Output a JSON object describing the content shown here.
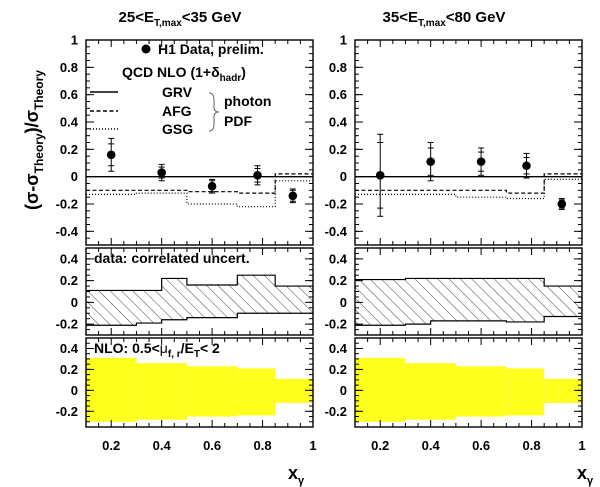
{
  "chart_data": {
    "type": "scatter",
    "columns": [
      {
        "title_main": "25<E",
        "title_sub": "T,max",
        "title_end": "<35 GeV"
      },
      {
        "title_main": "35<E",
        "title_sub": "T,max",
        "title_end": "<80 GeV"
      }
    ],
    "ylabel": {
      "a": "(σ-σ",
      "b": "Theory",
      "c": ")/σ",
      "d": "Theory"
    },
    "xlabel": {
      "main": "x",
      "sub": "γ"
    },
    "x_ticks": [
      "0.2",
      "0.4",
      "0.6",
      "0.8",
      "1"
    ],
    "xlim": [
      0.1,
      1.0
    ],
    "bin_edges": [
      [
        0.1,
        0.3,
        0.5,
        0.7,
        0.85,
        1.0
      ],
      [
        0.1,
        0.3,
        0.5,
        0.7,
        0.85,
        1.0
      ]
    ],
    "top": {
      "ylim": [
        -0.5,
        1.0
      ],
      "y_ticks": [
        "1",
        "0.8",
        "0.6",
        "0.4",
        "0.2",
        "0",
        "-0.2",
        "-0.4"
      ],
      "y_tick_values": [
        1,
        0.8,
        0.6,
        0.4,
        0.2,
        0,
        -0.2,
        -0.4
      ],
      "legend": {
        "data_label": "H1 Data, prelim.",
        "theory_label": "QCD NLO (1+δ",
        "theory_sub": "hadr",
        "theory_end": ")",
        "grv": "GRV",
        "afg": "AFG",
        "gsg": "GSG",
        "photon": "photon",
        "pdf": "PDF"
      },
      "data": [
        {
          "x": [
            0.2,
            0.4,
            0.6,
            0.78,
            0.92
          ],
          "y": [
            0.16,
            0.03,
            -0.07,
            0.01,
            -0.14
          ],
          "err_inner": [
            0.08,
            0.04,
            0.04,
            0.05,
            0.04
          ],
          "err_outer": [
            0.12,
            0.06,
            0.05,
            0.07,
            0.05
          ]
        },
        {
          "x": [
            0.2,
            0.4,
            0.6,
            0.78,
            0.92
          ],
          "y": [
            0.01,
            0.11,
            0.11,
            0.08,
            -0.2
          ],
          "err_inner": [
            0.24,
            0.1,
            0.07,
            0.06,
            0.03
          ],
          "err_outer": [
            0.3,
            0.14,
            0.1,
            0.09,
            0.04
          ]
        }
      ],
      "afg": [
        [
          -0.1,
          -0.1,
          -0.11,
          -0.12,
          0.02
        ],
        [
          -0.1,
          -0.1,
          -0.1,
          -0.12,
          0.02
        ]
      ],
      "gsg": [
        [
          -0.13,
          -0.12,
          -0.2,
          -0.22,
          -0.03
        ],
        [
          -0.13,
          -0.13,
          -0.15,
          -0.16,
          -0.02
        ]
      ]
    },
    "middle": {
      "label": "data: correlated uncert.",
      "ylim": [
        -0.3,
        0.5
      ],
      "y_ticks": [
        "0.4",
        "0.2",
        "0",
        "-0.2"
      ],
      "y_tick_values": [
        0.4,
        0.2,
        0,
        -0.2
      ],
      "upper": [
        [
          0.11,
          0.11,
          0.22,
          0.16,
          0.25,
          0.15
        ],
        [
          0.21,
          0.22,
          0.22,
          0.22,
          0.22,
          0.15
        ]
      ],
      "lower": [
        [
          -0.21,
          -0.19,
          -0.16,
          -0.14,
          -0.1,
          -0.1
        ],
        [
          -0.21,
          -0.2,
          -0.17,
          -0.17,
          -0.18,
          -0.13
        ]
      ]
    },
    "bottom": {
      "label_a": "NLO: 0.5<",
      "label_mu": "μ",
      "label_mu_sub": "f, r",
      "label_b": "/E",
      "label_b_sub": "T",
      "label_c": "< 2",
      "ylim": [
        -0.35,
        0.5
      ],
      "y_ticks": [
        "0.4",
        "0.2",
        "0",
        "-0.2"
      ],
      "y_tick_values": [
        0.4,
        0.2,
        0,
        -0.2
      ],
      "upper": [
        [
          0.31,
          0.26,
          0.23,
          0.21,
          0.11
        ],
        [
          0.31,
          0.26,
          0.23,
          0.21,
          0.11
        ]
      ],
      "lower": [
        [
          -0.3,
          -0.28,
          -0.25,
          -0.24,
          -0.12
        ],
        [
          -0.3,
          -0.28,
          -0.25,
          -0.24,
          -0.12
        ]
      ],
      "fill_color": "#ffff1e"
    }
  }
}
